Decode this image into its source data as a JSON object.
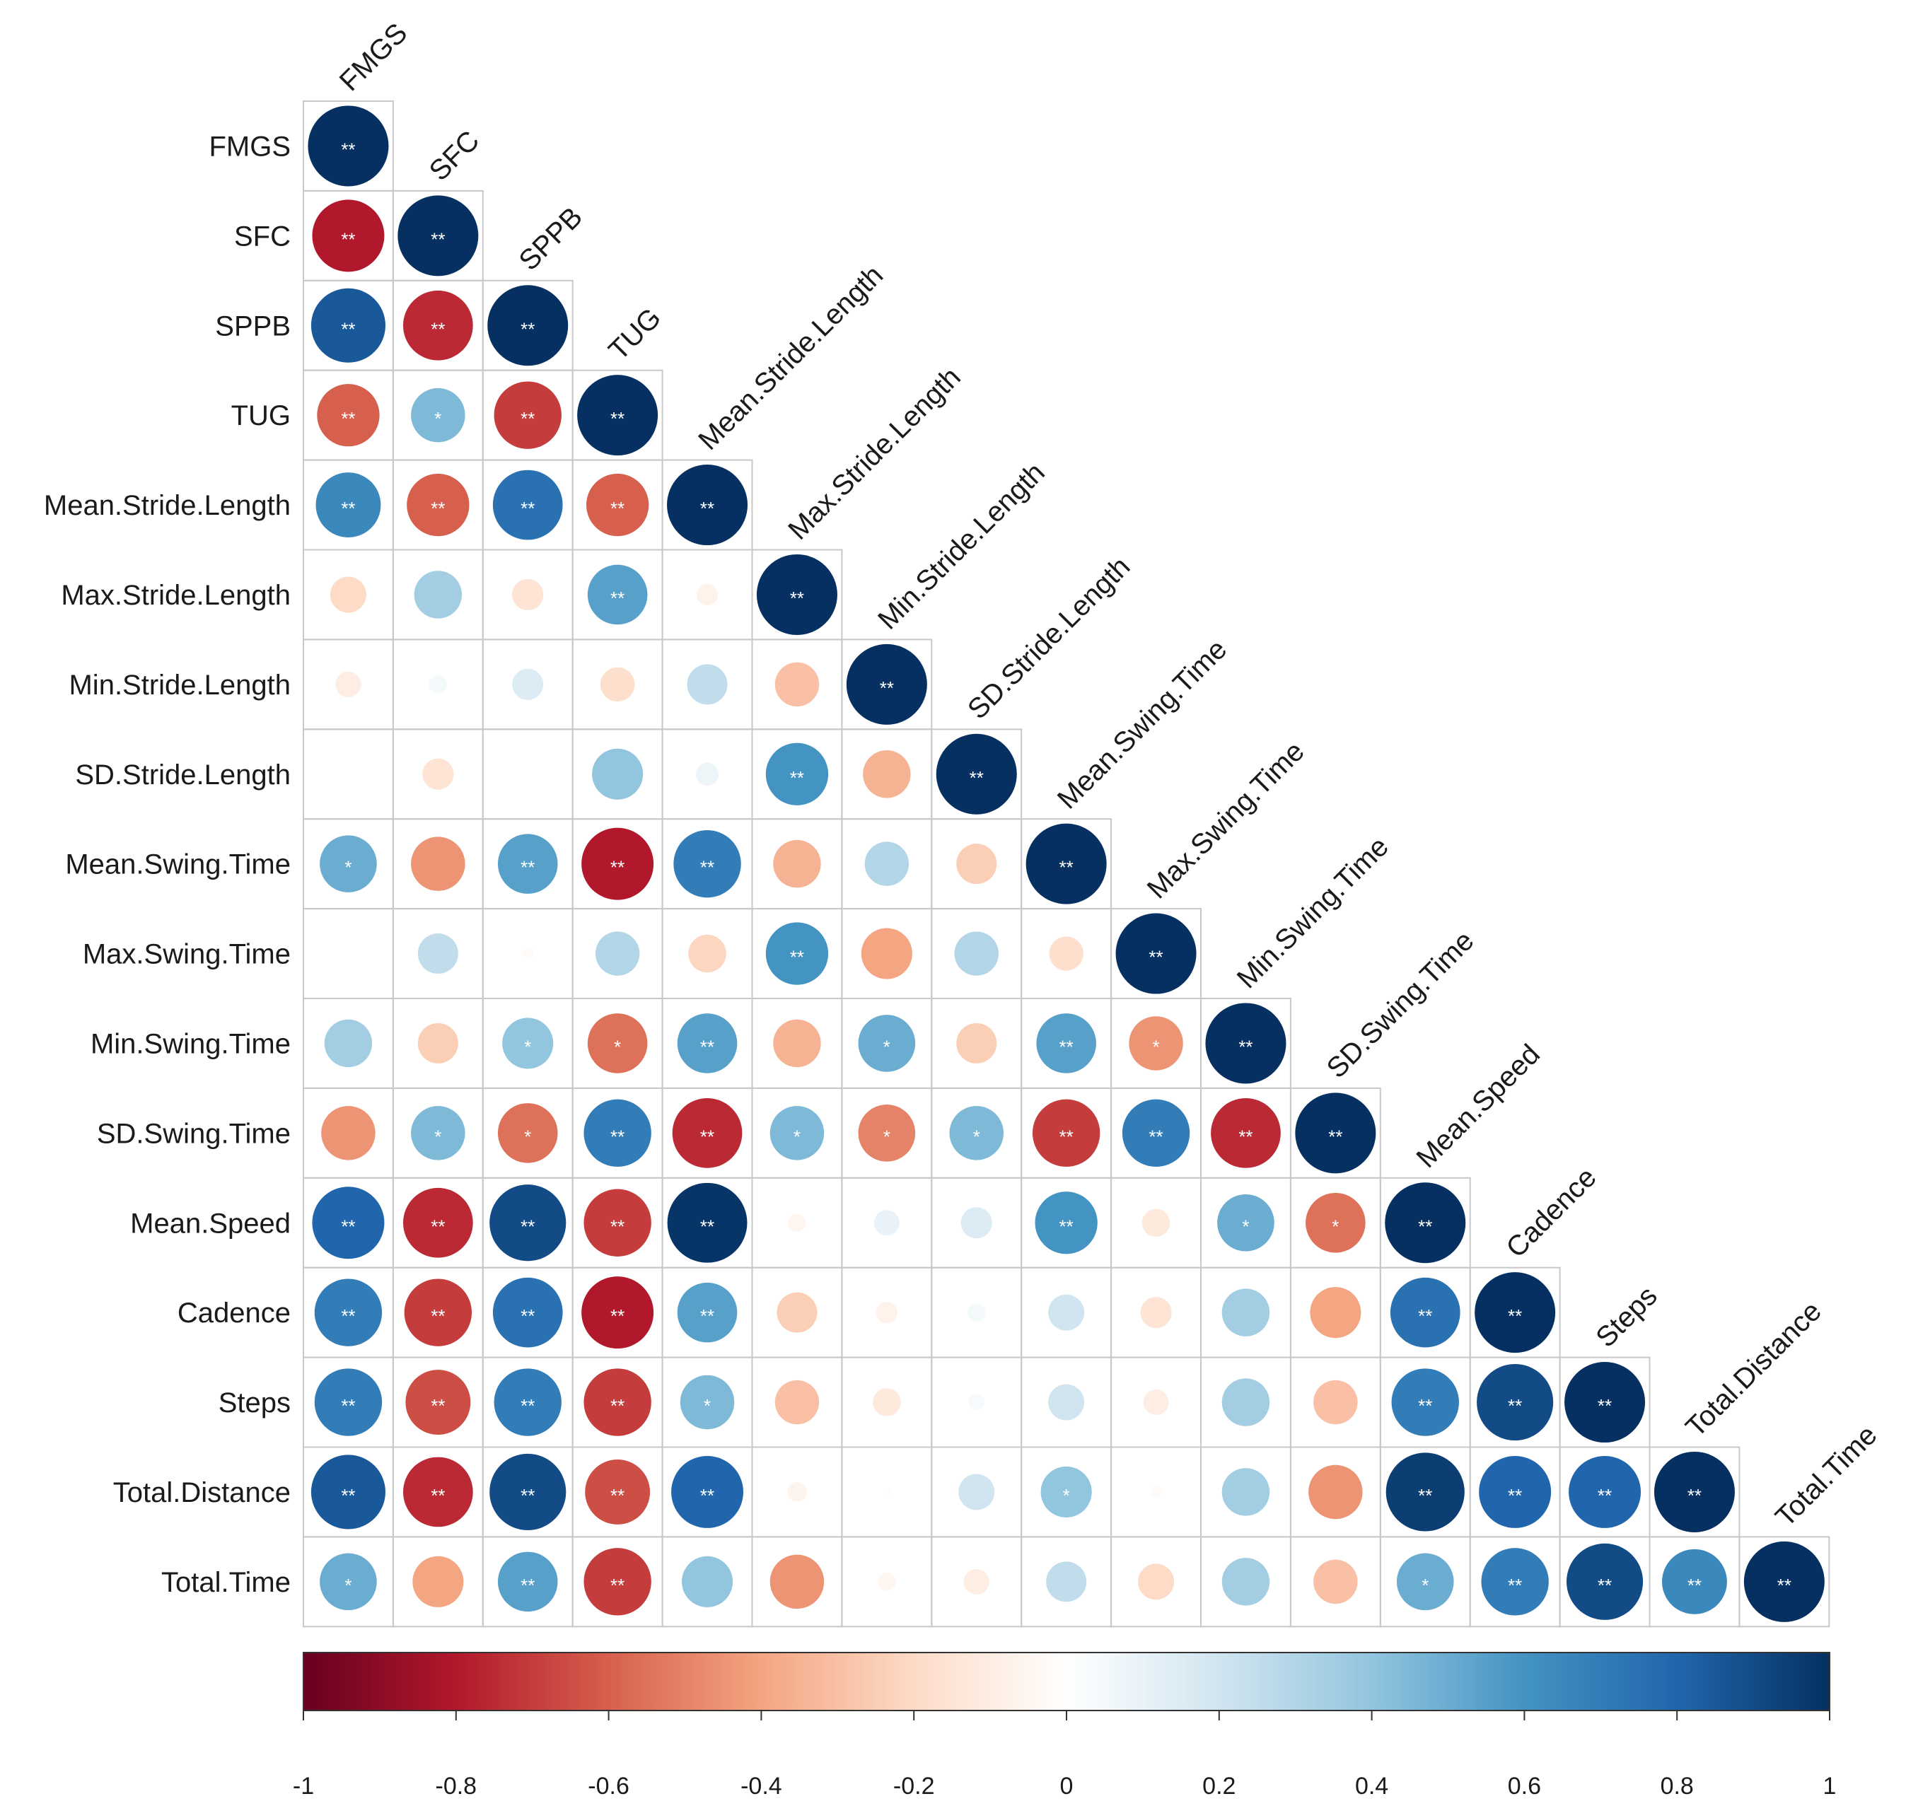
{
  "chart_data": {
    "type": "heatmap",
    "title": "",
    "variables": [
      "FMGS",
      "SFC",
      "SPPB",
      "TUG",
      "Mean.Stride.Length",
      "Max.Stride.Length",
      "Min.Stride.Length",
      "SD.Stride.Length",
      "Mean.Swing.Time",
      "Max.Swing.Time",
      "Min.Swing.Time",
      "SD.Swing.Time",
      "Mean.Speed",
      "Cadence",
      "Steps",
      "Total.Distance",
      "Total.Time"
    ],
    "correlations": [
      [
        1.0
      ],
      [
        -0.8,
        1.0
      ],
      [
        0.85,
        -0.75,
        1.0
      ],
      [
        -0.6,
        0.45,
        -0.7,
        1.0
      ],
      [
        0.65,
        -0.6,
        0.75,
        -0.6,
        1.0
      ],
      [
        -0.2,
        0.35,
        -0.15,
        0.55,
        -0.07,
        1.0
      ],
      [
        -0.1,
        0.05,
        0.15,
        -0.18,
        0.25,
        -0.3,
        1.0
      ],
      [
        0.0,
        -0.15,
        0.0,
        0.4,
        0.08,
        0.6,
        -0.35,
        1.0
      ],
      [
        0.5,
        -0.45,
        0.55,
        -0.8,
        0.7,
        -0.35,
        0.3,
        -0.25,
        1.0
      ],
      [
        0.0,
        0.25,
        -0.02,
        0.3,
        -0.22,
        0.6,
        -0.4,
        0.3,
        -0.18,
        1.0
      ],
      [
        0.35,
        -0.25,
        0.4,
        -0.55,
        0.55,
        -0.35,
        0.5,
        -0.25,
        0.55,
        -0.45,
        1.0
      ],
      [
        -0.45,
        0.45,
        -0.55,
        0.7,
        -0.75,
        0.45,
        -0.5,
        0.45,
        -0.7,
        0.7,
        -0.75,
        1.0
      ],
      [
        0.8,
        -0.75,
        0.9,
        -0.7,
        0.98,
        -0.05,
        0.1,
        0.15,
        0.6,
        -0.12,
        0.5,
        -0.55,
        1.0
      ],
      [
        0.7,
        -0.7,
        0.75,
        -0.8,
        0.55,
        -0.25,
        -0.07,
        0.05,
        0.2,
        -0.15,
        0.35,
        -0.4,
        0.75,
        1.0
      ],
      [
        0.7,
        -0.65,
        0.7,
        -0.7,
        0.45,
        -0.3,
        -0.12,
        0.04,
        0.2,
        -0.1,
        0.35,
        -0.3,
        0.7,
        0.9,
        1.0
      ],
      [
        0.85,
        -0.75,
        0.9,
        -0.65,
        0.8,
        -0.06,
        -0.01,
        0.2,
        0.4,
        -0.02,
        0.35,
        -0.45,
        0.95,
        0.8,
        0.8,
        1.0
      ],
      [
        0.5,
        -0.4,
        0.55,
        -0.7,
        0.4,
        -0.45,
        -0.05,
        -0.1,
        0.25,
        -0.2,
        0.35,
        -0.3,
        0.5,
        0.7,
        0.9,
        0.65,
        1.0
      ]
    ],
    "significance": [
      [
        "**"
      ],
      [
        "**",
        "**"
      ],
      [
        "**",
        "**",
        "**"
      ],
      [
        "**",
        "*",
        "**",
        "**"
      ],
      [
        "**",
        "**",
        "**",
        "**",
        "**"
      ],
      [
        "",
        "",
        "",
        "**",
        "",
        "**"
      ],
      [
        "",
        "",
        "",
        "",
        "",
        "",
        "**"
      ],
      [
        "",
        "",
        "",
        "",
        "",
        "**",
        "",
        "**"
      ],
      [
        "*",
        "",
        "**",
        "**",
        "**",
        "",
        "",
        "",
        "**"
      ],
      [
        "",
        "",
        "",
        "",
        "",
        "**",
        "",
        "",
        "",
        "**"
      ],
      [
        "",
        "",
        "*",
        "*",
        "**",
        "",
        "*",
        "",
        "**",
        "*",
        "**"
      ],
      [
        "",
        "*",
        "*",
        "**",
        "**",
        "*",
        "*",
        "*",
        "**",
        "**",
        "**",
        "**"
      ],
      [
        "**",
        "**",
        "**",
        "**",
        "**",
        "",
        "",
        "",
        "**",
        "",
        "*",
        "*",
        "**"
      ],
      [
        "**",
        "**",
        "**",
        "**",
        "**",
        "",
        "",
        "",
        "",
        "",
        "",
        "",
        "**",
        "**"
      ],
      [
        "**",
        "**",
        "**",
        "**",
        "*",
        "",
        "",
        "",
        "",
        "",
        "",
        "",
        "**",
        "**",
        "**"
      ],
      [
        "**",
        "**",
        "**",
        "**",
        "**",
        "",
        "",
        "",
        "*",
        "",
        "",
        "",
        "**",
        "**",
        "**",
        "**"
      ],
      [
        "*",
        "",
        "**",
        "**",
        "",
        "",
        "",
        "",
        "",
        "",
        "",
        "",
        "*",
        "**",
        "**",
        "**",
        "**"
      ]
    ],
    "colorbar": {
      "range": [
        -1,
        1
      ],
      "ticks": [
        "-1",
        "-0.8",
        "-0.6",
        "-0.4",
        "-0.2",
        "0",
        "0.2",
        "0.4",
        "0.6",
        "0.8",
        "1"
      ]
    },
    "palette": [
      "#67001F",
      "#B2182B",
      "#D6604D",
      "#F4A582",
      "#FDDBC7",
      "#FFFFFF",
      "#D1E5F0",
      "#92C5DE",
      "#4393C3",
      "#2166AC",
      "#053061"
    ],
    "grid_color": "#c8c8c8",
    "star_color": "#ffffff"
  }
}
